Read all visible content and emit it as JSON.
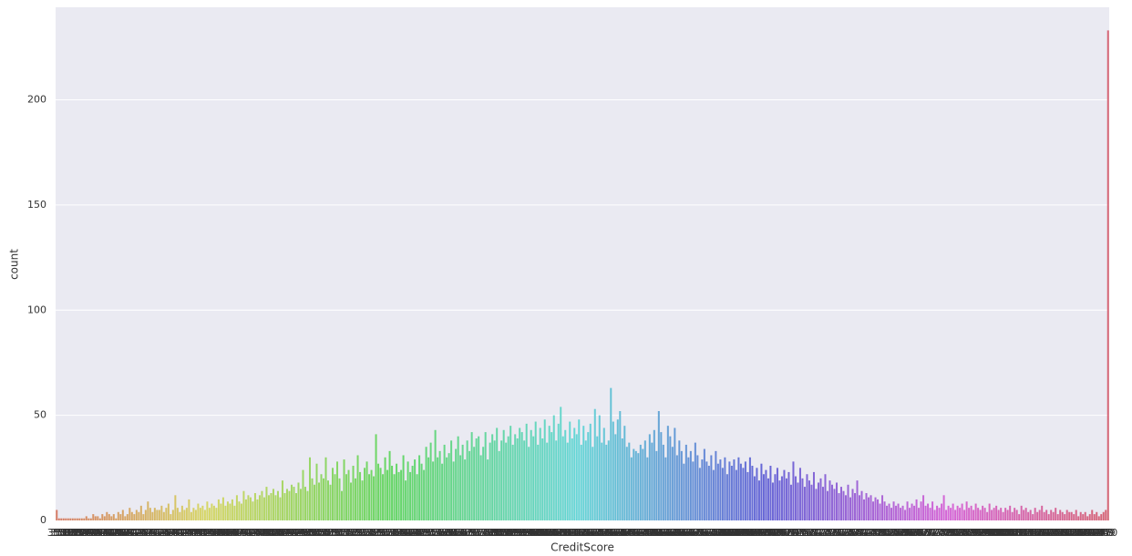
{
  "chart_data": {
    "type": "bar",
    "x_label": "CreditScore",
    "y_label": "count",
    "palette": "husl",
    "grid": true,
    "ylim": [
      0,
      244
    ],
    "yticks": [
      0,
      50,
      100,
      150,
      200
    ],
    "categories": [
      350,
      351,
      358,
      359,
      363,
      365,
      367,
      373,
      376,
      382,
      383,
      386,
      395,
      399,
      401,
      404,
      405,
      406,
      407,
      408,
      409,
      410,
      411,
      412,
      413,
      414,
      415,
      416,
      417,
      418,
      419,
      420,
      421,
      422,
      423,
      424,
      425,
      426,
      427,
      428,
      429,
      430,
      431,
      432,
      433,
      434,
      435,
      436,
      437,
      438,
      439,
      440,
      441,
      442,
      443,
      444,
      445,
      446,
      447,
      448,
      449,
      450,
      451,
      452,
      453,
      454,
      455,
      456,
      457,
      458,
      459,
      460,
      461,
      462,
      463,
      464,
      465,
      466,
      467,
      468,
      469,
      470,
      471,
      472,
      473,
      474,
      475,
      476,
      477,
      478,
      479,
      480,
      481,
      482,
      483,
      484,
      485,
      486,
      487,
      488,
      489,
      490,
      491,
      492,
      493,
      494,
      495,
      496,
      497,
      498,
      499,
      500,
      501,
      502,
      503,
      504,
      505,
      506,
      507,
      508,
      509,
      510,
      511,
      512,
      513,
      514,
      515,
      516,
      517,
      518,
      519,
      520,
      521,
      522,
      523,
      524,
      525,
      526,
      527,
      528,
      529,
      530,
      531,
      532,
      533,
      534,
      535,
      536,
      537,
      538,
      539,
      540,
      541,
      542,
      543,
      544,
      545,
      546,
      547,
      548,
      549,
      550,
      551,
      552,
      553,
      554,
      555,
      556,
      557,
      558,
      559,
      560,
      561,
      562,
      563,
      564,
      565,
      566,
      567,
      568,
      569,
      570,
      571,
      572,
      573,
      574,
      575,
      576,
      577,
      578,
      579,
      580,
      581,
      582,
      583,
      584,
      585,
      586,
      587,
      588,
      589,
      590,
      591,
      592,
      593,
      594,
      595,
      596,
      597,
      598,
      599,
      600,
      601,
      602,
      603,
      604,
      605,
      606,
      607,
      608,
      609,
      610,
      611,
      612,
      613,
      614,
      615,
      616,
      617,
      618,
      619,
      620,
      621,
      622,
      623,
      624,
      625,
      626,
      627,
      628,
      629,
      630,
      631,
      632,
      633,
      634,
      635,
      636,
      637,
      638,
      639,
      640,
      641,
      642,
      643,
      644,
      645,
      646,
      647,
      648,
      649,
      650,
      651,
      652,
      653,
      654,
      655,
      656,
      657,
      658,
      659,
      660,
      661,
      662,
      663,
      664,
      665,
      666,
      667,
      668,
      669,
      670,
      671,
      672,
      673,
      674,
      675,
      676,
      677,
      678,
      679,
      680,
      681,
      682,
      683,
      684,
      685,
      686,
      687,
      688,
      689,
      690,
      691,
      692,
      693,
      694,
      695,
      696,
      697,
      698,
      699,
      700,
      701,
      702,
      703,
      704,
      705,
      706,
      707,
      708,
      709,
      710,
      711,
      712,
      713,
      714,
      715,
      716,
      717,
      718,
      719,
      720,
      721,
      722,
      723,
      724,
      725,
      726,
      727,
      728,
      729,
      730,
      731,
      732,
      733,
      734,
      735,
      736,
      737,
      738,
      739,
      740,
      741,
      742,
      743,
      744,
      745,
      746,
      747,
      748,
      749,
      750,
      751,
      752,
      753,
      754,
      755,
      756,
      757,
      758,
      759,
      760,
      761,
      762,
      763,
      764,
      765,
      766,
      767,
      768,
      769,
      770,
      771,
      772,
      773,
      774,
      775,
      776,
      777,
      778,
      779,
      780,
      781,
      782,
      783,
      784,
      785,
      786,
      787,
      788,
      789,
      790,
      791,
      792,
      793,
      794,
      795,
      796,
      797,
      798,
      799,
      800,
      801,
      802,
      803,
      804,
      805,
      806,
      807,
      808,
      809,
      810,
      811,
      812,
      813,
      814,
      815,
      816,
      817,
      818,
      819,
      820,
      821,
      822,
      823,
      824,
      825,
      826,
      827,
      828,
      829,
      830,
      831,
      832,
      833,
      834,
      835,
      836,
      837,
      838,
      839,
      840,
      841,
      842,
      843,
      844,
      845,
      846,
      847,
      848,
      849,
      850
    ],
    "values": [
      5,
      1,
      1,
      1,
      1,
      1,
      1,
      1,
      1,
      1,
      1,
      1,
      1,
      2,
      1,
      1,
      3,
      2,
      2,
      1,
      3,
      2,
      4,
      3,
      2,
      3,
      1,
      4,
      3,
      5,
      2,
      3,
      6,
      4,
      3,
      5,
      4,
      7,
      3,
      5,
      9,
      6,
      4,
      6,
      5,
      5,
      7,
      4,
      6,
      8,
      3,
      5,
      12,
      6,
      4,
      7,
      5,
      6,
      10,
      4,
      6,
      5,
      8,
      6,
      7,
      5,
      9,
      6,
      8,
      7,
      6,
      10,
      8,
      11,
      7,
      9,
      8,
      10,
      7,
      12,
      9,
      8,
      14,
      10,
      12,
      11,
      9,
      13,
      10,
      12,
      14,
      11,
      16,
      12,
      13,
      15,
      12,
      14,
      11,
      19,
      13,
      15,
      14,
      17,
      16,
      13,
      18,
      15,
      24,
      16,
      14,
      30,
      20,
      17,
      27,
      18,
      22,
      20,
      30,
      19,
      17,
      25,
      22,
      28,
      20,
      14,
      29,
      22,
      24,
      18,
      26,
      20,
      31,
      23,
      19,
      25,
      28,
      22,
      24,
      21,
      41,
      27,
      25,
      22,
      30,
      24,
      33,
      26,
      22,
      27,
      23,
      24,
      31,
      19,
      28,
      23,
      26,
      29,
      22,
      31,
      27,
      24,
      35,
      30,
      37,
      28,
      43,
      30,
      33,
      27,
      36,
      30,
      32,
      38,
      28,
      34,
      40,
      31,
      36,
      29,
      38,
      33,
      42,
      35,
      39,
      40,
      31,
      35,
      42,
      29,
      37,
      41,
      38,
      44,
      33,
      38,
      43,
      37,
      40,
      45,
      36,
      41,
      39,
      44,
      42,
      38,
      46,
      35,
      43,
      40,
      47,
      36,
      44,
      39,
      48,
      37,
      45,
      42,
      50,
      38,
      46,
      54,
      40,
      43,
      37,
      47,
      39,
      44,
      41,
      48,
      36,
      45,
      38,
      42,
      46,
      35,
      53,
      40,
      50,
      37,
      44,
      36,
      38,
      63,
      47,
      41,
      48,
      52,
      39,
      45,
      35,
      37,
      30,
      34,
      33,
      32,
      36,
      34,
      38,
      30,
      41,
      37,
      43,
      33,
      52,
      42,
      36,
      30,
      45,
      40,
      35,
      44,
      31,
      38,
      33,
      27,
      36,
      30,
      33,
      28,
      37,
      31,
      25,
      29,
      34,
      28,
      26,
      31,
      24,
      33,
      27,
      29,
      25,
      30,
      22,
      28,
      26,
      29,
      24,
      30,
      27,
      25,
      28,
      23,
      30,
      26,
      21,
      25,
      19,
      27,
      22,
      24,
      20,
      26,
      18,
      22,
      25,
      19,
      21,
      24,
      20,
      23,
      17,
      28,
      21,
      18,
      25,
      20,
      16,
      22,
      19,
      17,
      23,
      15,
      18,
      20,
      16,
      22,
      14,
      19,
      17,
      15,
      18,
      13,
      16,
      14,
      12,
      17,
      11,
      15,
      13,
      19,
      12,
      14,
      10,
      13,
      11,
      12,
      9,
      11,
      10,
      8,
      12,
      9,
      7,
      8,
      6,
      9,
      7,
      8,
      6,
      7,
      5,
      9,
      6,
      8,
      7,
      10,
      6,
      9,
      12,
      7,
      8,
      6,
      9,
      5,
      7,
      6,
      8,
      12,
      5,
      7,
      6,
      8,
      5,
      7,
      6,
      8,
      5,
      9,
      6,
      7,
      5,
      8,
      6,
      5,
      7,
      6,
      4,
      8,
      5,
      6,
      7,
      5,
      6,
      4,
      6,
      5,
      7,
      4,
      6,
      5,
      3,
      7,
      5,
      6,
      4,
      5,
      3,
      6,
      4,
      5,
      7,
      4,
      5,
      3,
      5,
      4,
      6,
      3,
      5,
      4,
      3,
      5,
      4,
      4,
      3,
      5,
      2,
      4,
      3,
      4,
      2,
      3,
      5,
      3,
      4,
      2,
      3,
      4,
      5,
      233
    ]
  }
}
